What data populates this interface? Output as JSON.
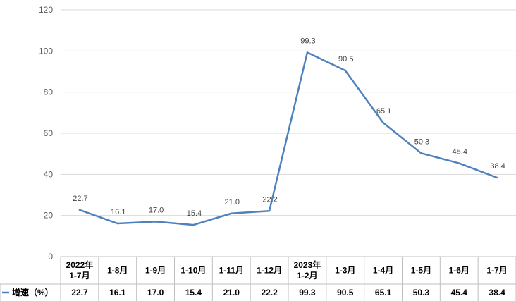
{
  "chart_data": {
    "type": "line",
    "title": "",
    "xlabel": "",
    "ylabel": "",
    "ylim": [
      0,
      120
    ],
    "yticks": [
      0,
      20,
      40,
      60,
      80,
      100,
      120
    ],
    "grid": true,
    "categories": [
      [
        "2022年",
        "1-7月"
      ],
      [
        "1-8月"
      ],
      [
        "1-9月"
      ],
      [
        "1-10月"
      ],
      [
        "1-11月"
      ],
      [
        "1-12月"
      ],
      [
        "2023年",
        "1-2月"
      ],
      [
        "1-3月"
      ],
      [
        "1-4月"
      ],
      [
        "1-5月"
      ],
      [
        "1-6月"
      ],
      [
        "1-7月"
      ]
    ],
    "series": [
      {
        "name": "增速（%）",
        "color": "#4f81bd",
        "values": [
          22.7,
          16.1,
          17.0,
          15.4,
          21.0,
          22.2,
          99.3,
          90.5,
          65.1,
          50.3,
          45.4,
          38.4
        ],
        "labels": [
          "22.7",
          "16.1",
          "17.0",
          "15.4",
          "21.0",
          "22.2",
          "99.3",
          "90.5",
          "65.1",
          "50.3",
          "45.4",
          "38.4"
        ]
      }
    ],
    "data_table": true
  }
}
